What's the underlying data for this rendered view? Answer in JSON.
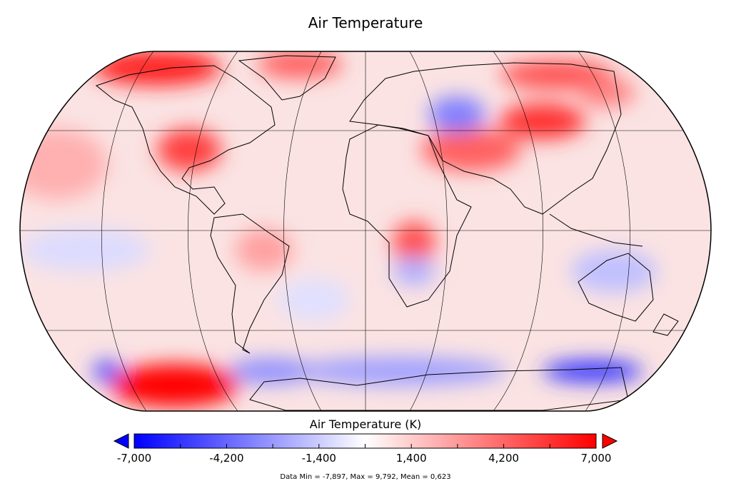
{
  "title": "Air Temperature",
  "map": {
    "projection": "Robinson",
    "grid": true,
    "coastlines": true,
    "warm_regions": [
      "Arctic North America",
      "Greenland",
      "Eastern North America",
      "Siberia",
      "Central Asia",
      "Central Africa",
      "Antarctic Peninsula / Amundsen Sea"
    ],
    "cool_regions": [
      "Western Siberia",
      "Southern Ocean",
      "East Antarctica coast",
      "Eastern Pacific",
      "Southern Africa"
    ]
  },
  "colorbar": {
    "title": "Air Temperature (K)",
    "min": -7000,
    "max": 7000,
    "tick_step": 1400,
    "labels": [
      "-7,000",
      "-4,200",
      "-1,400",
      "1,400",
      "4,200",
      "7,000"
    ],
    "label_values": [
      -7000,
      -4200,
      -1400,
      1400,
      4200,
      7000
    ],
    "colors": {
      "low": "#0000ff",
      "mid": "#ffffff",
      "high": "#ff0000"
    },
    "extend": "both"
  },
  "footer": "Data Min = -7,897, Max = 9,792, Mean = 0,623"
}
